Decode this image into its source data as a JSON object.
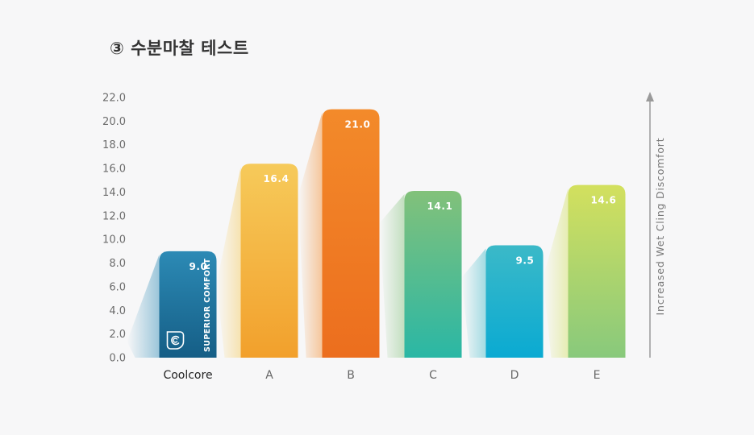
{
  "title": "③ 수분마찰 테스트",
  "chart_data": {
    "type": "bar",
    "categories": [
      "Coolcore",
      "A",
      "B",
      "C",
      "D",
      "E"
    ],
    "values": [
      9.0,
      16.4,
      21.0,
      14.1,
      9.5,
      14.6
    ],
    "value_labels": [
      "9.0",
      "16.4",
      "21.0",
      "14.1",
      "9.5",
      "14.6"
    ],
    "title": "③ 수분마찰 테스트",
    "xlabel": "",
    "ylabel": "Increased Wet Cling Discomfort",
    "ylim": [
      0,
      22
    ],
    "yticks": [
      "0.0",
      "2.0",
      "4.0",
      "6.0",
      "8.0",
      "10.0",
      "12.0",
      "14.0",
      "16.0",
      "18.0",
      "20.0",
      "22.0"
    ],
    "grid": false,
    "legend": "none",
    "bar_colors": [
      [
        "#2c8ab5",
        "#155e86"
      ],
      [
        "#f6ca5a",
        "#f2a02c"
      ],
      [
        "#f38a2a",
        "#ec6e1e"
      ],
      [
        "#82c17a",
        "#2ab7a5"
      ],
      [
        "#3bb9c8",
        "#0aaad2"
      ],
      [
        "#d3e05e",
        "#88c97c"
      ]
    ],
    "brand_tag": "SUPERIOR COMFORT",
    "brand_icon": "coolcore-logo-icon"
  }
}
